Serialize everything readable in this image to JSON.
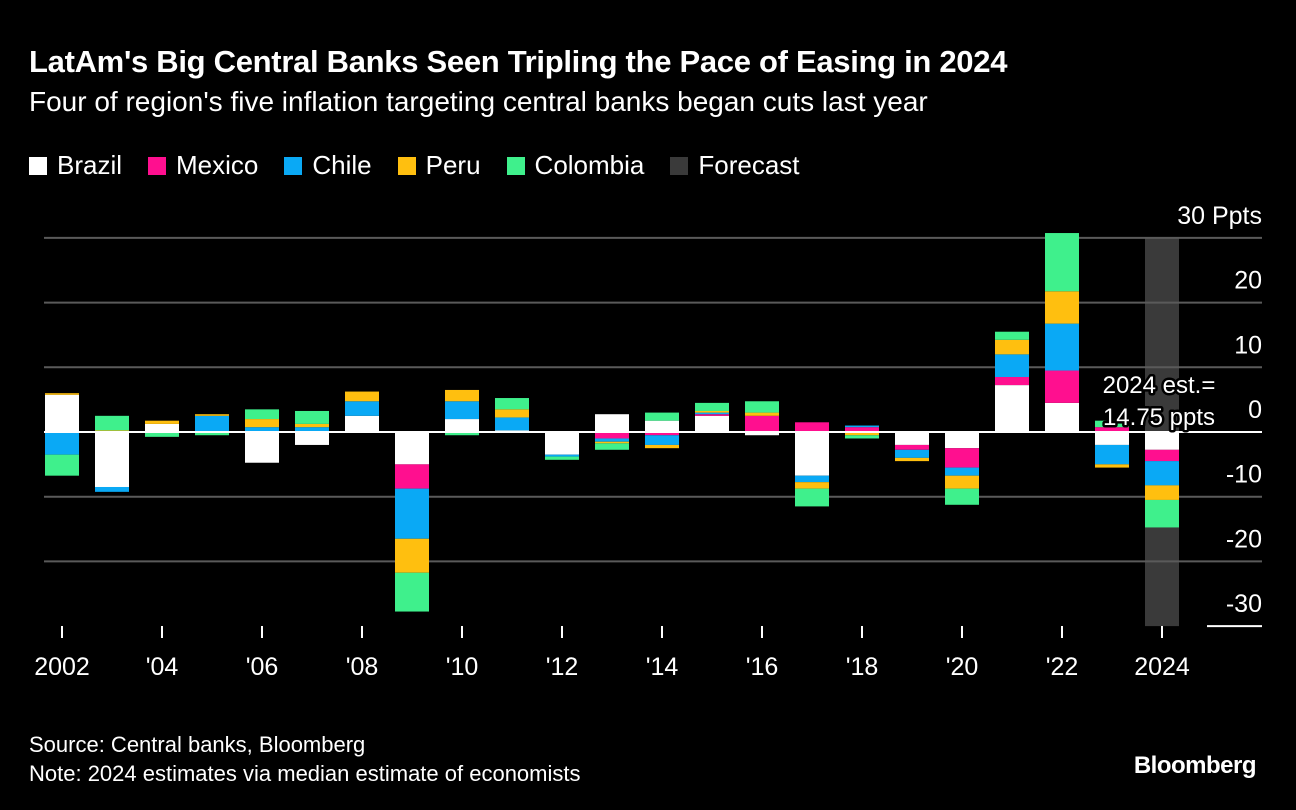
{
  "chart_data": {
    "type": "bar",
    "stacked": true,
    "title": "LatAm's Big Central Banks Seen Tripling the Pace of Easing in 2024",
    "subtitle": "Four of region's five inflation targeting central banks began cuts last year",
    "xlabel": "",
    "ylabel": "",
    "y_unit_label": "Ppts",
    "ylim": [
      -30,
      30
    ],
    "yticks": [
      30,
      20,
      10,
      0,
      -10,
      -20,
      -30
    ],
    "ytick_labels": [
      "30 Ppts",
      "20",
      "10",
      "0",
      "-10",
      "-20",
      "-30"
    ],
    "grid": true,
    "legend_position": "top-left",
    "x": [
      2002,
      2003,
      2004,
      2005,
      2006,
      2007,
      2008,
      2009,
      2010,
      2011,
      2012,
      2013,
      2014,
      2015,
      2016,
      2017,
      2018,
      2019,
      2020,
      2021,
      2022,
      2023,
      2024
    ],
    "xticks": [
      2002,
      2004,
      2006,
      2008,
      2010,
      2012,
      2014,
      2016,
      2018,
      2020,
      2022,
      2024
    ],
    "xtick_labels": [
      "2002",
      "'04",
      "'06",
      "'08",
      "'10",
      "'12",
      "'14",
      "'16",
      "'18",
      "'20",
      "'22",
      "2024"
    ],
    "series": [
      {
        "name": "Brazil",
        "color": "#ffffff",
        "values": [
          5.75,
          -8.5,
          1.25,
          0,
          -4.75,
          -2.0,
          2.5,
          -5.0,
          2.0,
          0.25,
          -3.5,
          2.75,
          1.75,
          2.5,
          -0.5,
          -6.75,
          0,
          -2.0,
          -2.5,
          7.25,
          4.5,
          -2.0,
          -2.75
        ]
      },
      {
        "name": "Mexico",
        "color": "#ff0f8f",
        "values": [
          0,
          0,
          0,
          0,
          0,
          0,
          0,
          -3.75,
          0,
          0,
          0,
          -1.0,
          -0.5,
          0.25,
          2.5,
          1.5,
          0.75,
          -0.75,
          -3.0,
          1.25,
          5.0,
          0.75,
          -1.75
        ]
      },
      {
        "name": "Chile",
        "color": "#0aa9f5",
        "values": [
          -3.5,
          -0.75,
          0,
          2.5,
          0.75,
          0.75,
          2.25,
          -7.75,
          2.75,
          2.0,
          -0.3,
          -0.5,
          -1.5,
          0.25,
          0,
          -1.0,
          0.25,
          -1.25,
          -1.25,
          3.5,
          7.25,
          -3.0,
          -3.75
        ]
      },
      {
        "name": "Peru",
        "color": "#ffbf0f",
        "values": [
          0.25,
          0.25,
          0.5,
          0.25,
          1.25,
          0.5,
          1.5,
          -5.25,
          1.75,
          1.25,
          0,
          -0.25,
          -0.5,
          0.25,
          0.5,
          -1.0,
          -0.5,
          -0.5,
          -2.0,
          2.25,
          5.0,
          -0.5,
          -2.25
        ]
      },
      {
        "name": "Colombia",
        "color": "#3ff08c",
        "values": [
          -3.25,
          2.25,
          -0.75,
          -0.5,
          1.5,
          2.0,
          0,
          -6.0,
          -0.5,
          1.75,
          -0.5,
          -1.0,
          1.25,
          1.25,
          1.75,
          -2.75,
          -0.5,
          0,
          -2.5,
          1.25,
          9.0,
          1.0,
          -4.25
        ]
      }
    ],
    "forecast": {
      "label": "Forecast",
      "year": 2024,
      "color": "#3a3a3a"
    },
    "annotations": [
      {
        "lines": [
          "2024 est.=",
          "14.75 ppts"
        ],
        "x": 2023.5,
        "y": 6
      }
    ]
  },
  "legend": [
    {
      "label": "Brazil",
      "color": "#ffffff"
    },
    {
      "label": "Mexico",
      "color": "#ff0f8f"
    },
    {
      "label": "Chile",
      "color": "#0aa9f5"
    },
    {
      "label": "Peru",
      "color": "#ffbf0f"
    },
    {
      "label": "Colombia",
      "color": "#3ff08c"
    },
    {
      "label": "Forecast",
      "color": "#3a3a3a"
    }
  ],
  "footer": {
    "source": "Source: Central banks, Bloomberg",
    "note": "Note: 2024 estimates via median estimate of economists"
  },
  "brand": "Bloomberg"
}
